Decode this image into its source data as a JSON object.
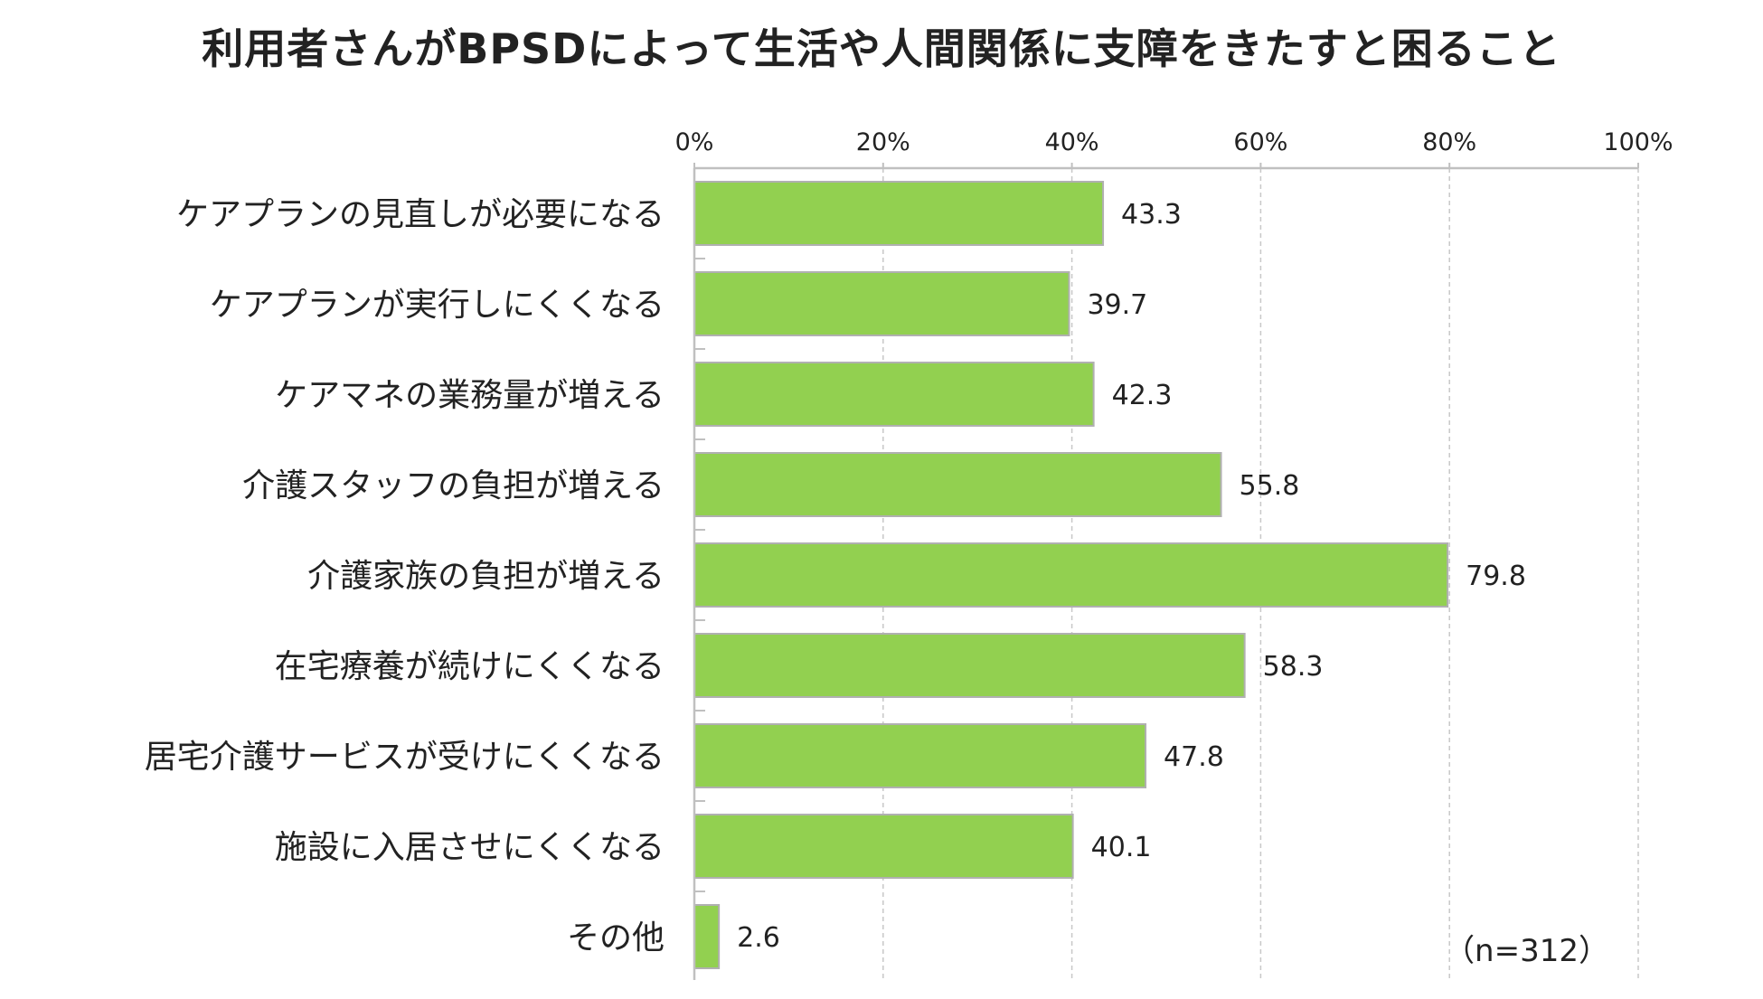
{
  "chart_data": {
    "type": "bar",
    "orientation": "horizontal",
    "title": "利用者さんがBPSDによって生活や人間関係に支障をきたすと困ること",
    "categories": [
      "ケアプランの見直しが必要になる",
      "ケアプランが実行しにくくなる",
      "ケアマネの業務量が増える",
      "介護スタッフの負担が増える",
      "介護家族の負担が増える",
      "在宅療養が続けにくくなる",
      "居宅介護サービスが受けにくくなる",
      "施設に入居させにくくなる",
      "その他"
    ],
    "values": [
      43.3,
      39.7,
      42.3,
      55.8,
      79.8,
      58.3,
      47.8,
      40.1,
      2.6
    ],
    "value_labels": [
      "43.3",
      "39.7",
      "42.3",
      "55.8",
      "79.8",
      "58.3",
      "47.8",
      "40.1",
      "2.6"
    ],
    "xlim": [
      0,
      100
    ],
    "x_ticks": [
      0,
      20,
      40,
      60,
      80,
      100
    ],
    "x_tick_labels": [
      "0%",
      "20%",
      "40%",
      "60%",
      "80%",
      "100%"
    ],
    "x_axis_position": "top",
    "grid": "vertical dashed",
    "legend": "none",
    "note": "（n=312）",
    "colors": {
      "bar_fill": "#92d050",
      "bar_stroke": "#b0b0b0",
      "grid": "#c8c8c8",
      "axis": "#c0c0c0"
    }
  }
}
